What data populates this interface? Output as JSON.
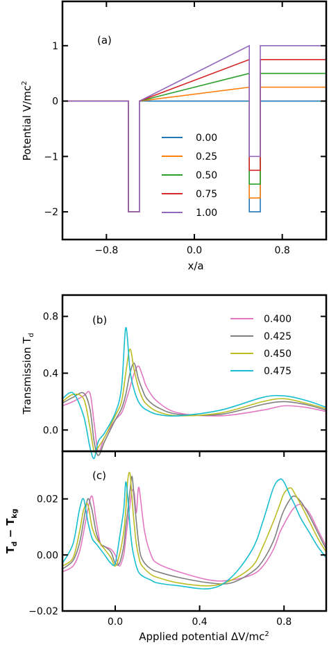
{
  "chart_data": [
    {
      "panel_label": "(a)",
      "type": "line",
      "xlabel": "x/a",
      "ylabel": "Potential V/mc",
      "ylabel_sup": "2",
      "xlim": [
        -1.2,
        1.2
      ],
      "ylim": [
        -2.5,
        1.8
      ],
      "xticks": [
        -0.8,
        0.0,
        0.8
      ],
      "xtick_labels": [
        "−0.8",
        "0.0",
        "0.8"
      ],
      "yticks": [
        -2,
        -1,
        0,
        1
      ],
      "ytick_labels": [
        "−2",
        "−1",
        "0",
        "1"
      ],
      "legend_position": "center",
      "grid": false,
      "series": [
        {
          "name": "0.00",
          "color": "#1f77b4",
          "dV": 0.0
        },
        {
          "name": "0.25",
          "color": "#ff7f0e",
          "dV": 0.25
        },
        {
          "name": "0.50",
          "color": "#2ca02c",
          "dV": 0.5
        },
        {
          "name": "0.75",
          "color": "#d62728",
          "dV": 0.75
        },
        {
          "name": "1.00",
          "color": "#9467bd",
          "dV": 1.0
        }
      ]
    },
    {
      "panel_label": "(b)",
      "type": "line",
      "xlabel": "",
      "ylabel": "Transmission T",
      "ylabel_sub": "d",
      "xlim": [
        -0.25,
        1.0
      ],
      "ylim": [
        -0.15,
        0.95
      ],
      "yticks": [
        0.0,
        0.4,
        0.8
      ],
      "ytick_labels": [
        "0.0",
        "0.4",
        "0.8"
      ],
      "legend_position": "top-right",
      "grid": false,
      "x": [
        -0.25,
        -0.2,
        -0.15,
        -0.12,
        -0.1,
        -0.08,
        -0.05,
        0.0,
        0.03,
        0.05,
        0.07,
        0.09,
        0.11,
        0.13,
        0.15,
        0.2,
        0.3,
        0.5,
        0.7,
        0.8,
        0.9,
        1.0
      ],
      "series": [
        {
          "name": "0.400",
          "color": "#e377c2",
          "values": [
            0.17,
            0.2,
            0.24,
            0.26,
            0.05,
            -0.15,
            -0.05,
            0.07,
            0.12,
            0.2,
            0.3,
            0.4,
            0.45,
            0.38,
            0.3,
            0.2,
            0.12,
            0.1,
            0.14,
            0.17,
            0.16,
            0.13
          ]
        },
        {
          "name": "0.425",
          "color": "#7f7f7f",
          "values": [
            0.19,
            0.23,
            0.26,
            0.15,
            -0.08,
            -0.18,
            -0.08,
            0.07,
            0.15,
            0.25,
            0.4,
            0.47,
            0.36,
            0.28,
            0.22,
            0.16,
            0.11,
            0.11,
            0.18,
            0.2,
            0.18,
            0.14
          ]
        },
        {
          "name": "0.450",
          "color": "#bcbd22",
          "values": [
            0.2,
            0.25,
            0.22,
            0.02,
            -0.15,
            -0.12,
            -0.05,
            0.1,
            0.2,
            0.4,
            0.57,
            0.42,
            0.3,
            0.22,
            0.18,
            0.13,
            0.1,
            0.12,
            0.2,
            0.22,
            0.19,
            0.15
          ]
        },
        {
          "name": "0.475",
          "color": "#17becf",
          "values": [
            0.22,
            0.26,
            0.1,
            -0.12,
            -0.2,
            -0.08,
            -0.02,
            0.12,
            0.3,
            0.72,
            0.42,
            0.28,
            0.2,
            0.16,
            0.14,
            0.11,
            0.1,
            0.14,
            0.23,
            0.24,
            0.21,
            0.16
          ]
        }
      ]
    },
    {
      "panel_label": "(c)",
      "type": "line",
      "xlabel": "Applied potential ΔV/mc",
      "xlabel_sup": "2",
      "ylabel": "T",
      "ylabel_sub1": "d",
      "ylabel_mid": " − T",
      "ylabel_sub2": "kg",
      "xlim": [
        -0.25,
        1.0
      ],
      "ylim": [
        -0.02,
        0.037
      ],
      "xticks": [
        0.0,
        0.4,
        0.8
      ],
      "xtick_labels": [
        "0.0",
        "0.4",
        "0.8"
      ],
      "yticks": [
        -0.02,
        0.0,
        0.02
      ],
      "ytick_labels": [
        "−0.02",
        "0.00",
        "0.02"
      ],
      "grid": false,
      "x": [
        -0.25,
        -0.2,
        -0.17,
        -0.15,
        -0.13,
        -0.11,
        -0.09,
        -0.07,
        -0.05,
        -0.02,
        0.0,
        0.02,
        0.04,
        0.05,
        0.06,
        0.07,
        0.08,
        0.09,
        0.1,
        0.11,
        0.12,
        0.14,
        0.17,
        0.2,
        0.3,
        0.45,
        0.55,
        0.65,
        0.7,
        0.75,
        0.78,
        0.8,
        0.83,
        0.85,
        0.88,
        0.92,
        0.96,
        1.0
      ],
      "series": [
        {
          "name": "0.400",
          "color": "#e377c2",
          "values": [
            -0.006,
            -0.004,
            0.001,
            0.008,
            0.016,
            0.021,
            0.012,
            0.004,
            0.003,
            0.002,
            0.0,
            -0.004,
            0.0,
            0.006,
            0.012,
            0.018,
            0.023,
            0.022,
            0.015,
            0.024,
            0.02,
            0.008,
            0.0,
            -0.003,
            -0.006,
            -0.009,
            -0.009,
            -0.007,
            -0.004,
            0.002,
            0.008,
            0.011,
            0.015,
            0.017,
            0.018,
            0.015,
            0.009,
            0.003
          ]
        },
        {
          "name": "0.425",
          "color": "#7f7f7f",
          "values": [
            -0.005,
            -0.002,
            0.004,
            0.012,
            0.02,
            0.016,
            0.008,
            0.004,
            0.003,
            0.001,
            -0.003,
            -0.003,
            0.003,
            0.01,
            0.016,
            0.023,
            0.028,
            0.02,
            0.012,
            0.005,
            0.0,
            -0.003,
            -0.005,
            -0.006,
            -0.008,
            -0.01,
            -0.01,
            -0.006,
            -0.002,
            0.005,
            0.012,
            0.016,
            0.02,
            0.021,
            0.019,
            0.014,
            0.008,
            0.002
          ]
        },
        {
          "name": "0.450",
          "color": "#bcbd22",
          "values": [
            -0.004,
            -0.001,
            0.008,
            0.016,
            0.018,
            0.01,
            0.006,
            0.004,
            0.002,
            -0.001,
            -0.004,
            0.0,
            0.008,
            0.016,
            0.027,
            0.029,
            0.02,
            0.011,
            0.004,
            0.0,
            -0.003,
            -0.005,
            -0.007,
            -0.008,
            -0.01,
            -0.011,
            -0.009,
            -0.004,
            0.003,
            0.012,
            0.018,
            0.022,
            0.024,
            0.022,
            0.018,
            0.012,
            0.006,
            0.001
          ]
        },
        {
          "name": "0.475",
          "color": "#17becf",
          "values": [
            -0.003,
            0.004,
            0.016,
            0.02,
            0.012,
            0.006,
            0.004,
            0.002,
            0.0,
            -0.003,
            -0.003,
            0.006,
            0.016,
            0.026,
            0.02,
            0.01,
            0.003,
            -0.001,
            -0.004,
            -0.006,
            -0.007,
            -0.008,
            -0.009,
            -0.01,
            -0.011,
            -0.012,
            -0.008,
            0.002,
            0.012,
            0.024,
            0.027,
            0.026,
            0.021,
            0.018,
            0.013,
            0.008,
            0.003,
            -0.001
          ]
        }
      ]
    }
  ]
}
